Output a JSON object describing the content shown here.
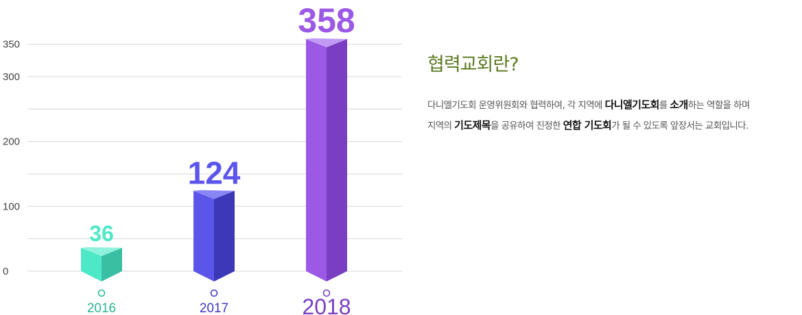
{
  "chart_data": {
    "type": "bar",
    "categories": [
      "2016",
      "2017",
      "2018"
    ],
    "values": [
      36,
      124,
      358
    ],
    "ylim": [
      0,
      358
    ],
    "yticks": [
      0,
      100,
      200,
      300,
      350
    ],
    "grid": true,
    "colors": {
      "2016": {
        "front": "#4de8c6",
        "side": "#3bbfa3",
        "top": "#8ff2dc",
        "label": "#4de8c6",
        "year": "#2bb595"
      },
      "2017": {
        "front": "#5c55ea",
        "side": "#3c38b8",
        "top": "#8a85f5",
        "label": "#5c55ea",
        "year": "#3f38c2"
      },
      "2018": {
        "front": "#9c59e6",
        "side": "#7a3ec2",
        "top": "#c09af5",
        "label": "#9c59e6",
        "year": "#7a3ec2"
      }
    }
  },
  "info": {
    "title": "협력교회란?",
    "line1": [
      {
        "t": "다니엘기도회 운영위원회와 협력하여, 각 지역에 ",
        "b": false
      },
      {
        "t": "다니엘기도회",
        "b": true
      },
      {
        "t": "를 ",
        "b": false
      },
      {
        "t": "소개",
        "b": true
      },
      {
        "t": "하는 역할을 하며",
        "b": false
      }
    ],
    "line2": [
      {
        "t": "지역의 ",
        "b": false
      },
      {
        "t": "기도제목",
        "b": true
      },
      {
        "t": "을 공유하여 진정한 ",
        "b": false
      },
      {
        "t": "연합 기도회",
        "b": true
      },
      {
        "t": "가 될 수 있도록 앞장서는 교회입니다.",
        "b": false
      }
    ]
  }
}
